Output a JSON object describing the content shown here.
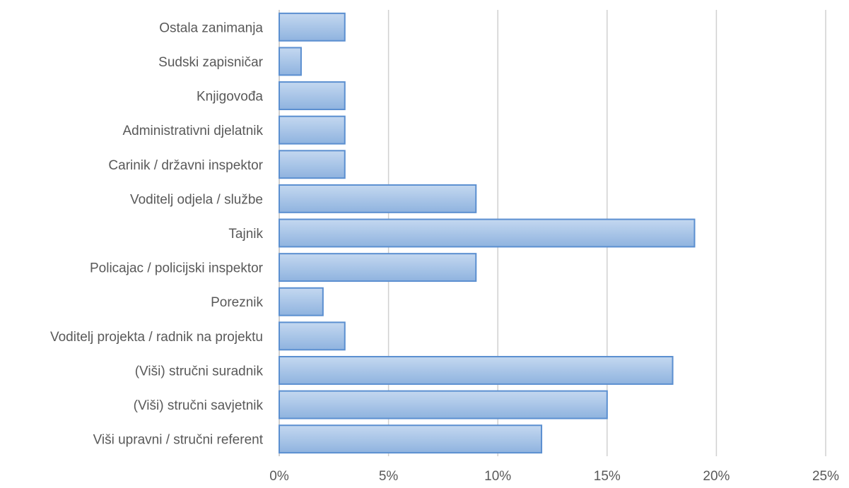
{
  "chart_data": {
    "type": "bar",
    "orientation": "horizontal",
    "categories": [
      "Ostala zanimanja",
      "Sudski zapisničar",
      "Knjigovođa",
      "Administrativni djelatnik",
      "Carinik / državni inspektor",
      "Voditelj odjela / službe",
      "Tajnik",
      "Policajac / policijski inspektor",
      "Poreznik",
      "Voditelj projekta / radnik na projektu",
      "(Viši) stručni suradnik",
      "(Viši) stručni savjetnik",
      "Viši upravni / stručni referent"
    ],
    "values": [
      3,
      1,
      3,
      3,
      3,
      9,
      19,
      9,
      2,
      3,
      18,
      15,
      12
    ],
    "xlim": [
      0,
      25
    ],
    "x_ticks": [
      0,
      5,
      10,
      15,
      20,
      25
    ],
    "x_tick_labels": [
      "0%",
      "5%",
      "10%",
      "15%",
      "20%",
      "25%"
    ],
    "title": "",
    "xlabel": "",
    "ylabel": "",
    "grid": "vertical",
    "legend": "none",
    "colors": {
      "bar_top": "#c4d8f0",
      "bar_bottom": "#8fb3df",
      "bar_border": "#5b8fd0",
      "grid": "#d0d0d0",
      "text": "#595959"
    }
  }
}
